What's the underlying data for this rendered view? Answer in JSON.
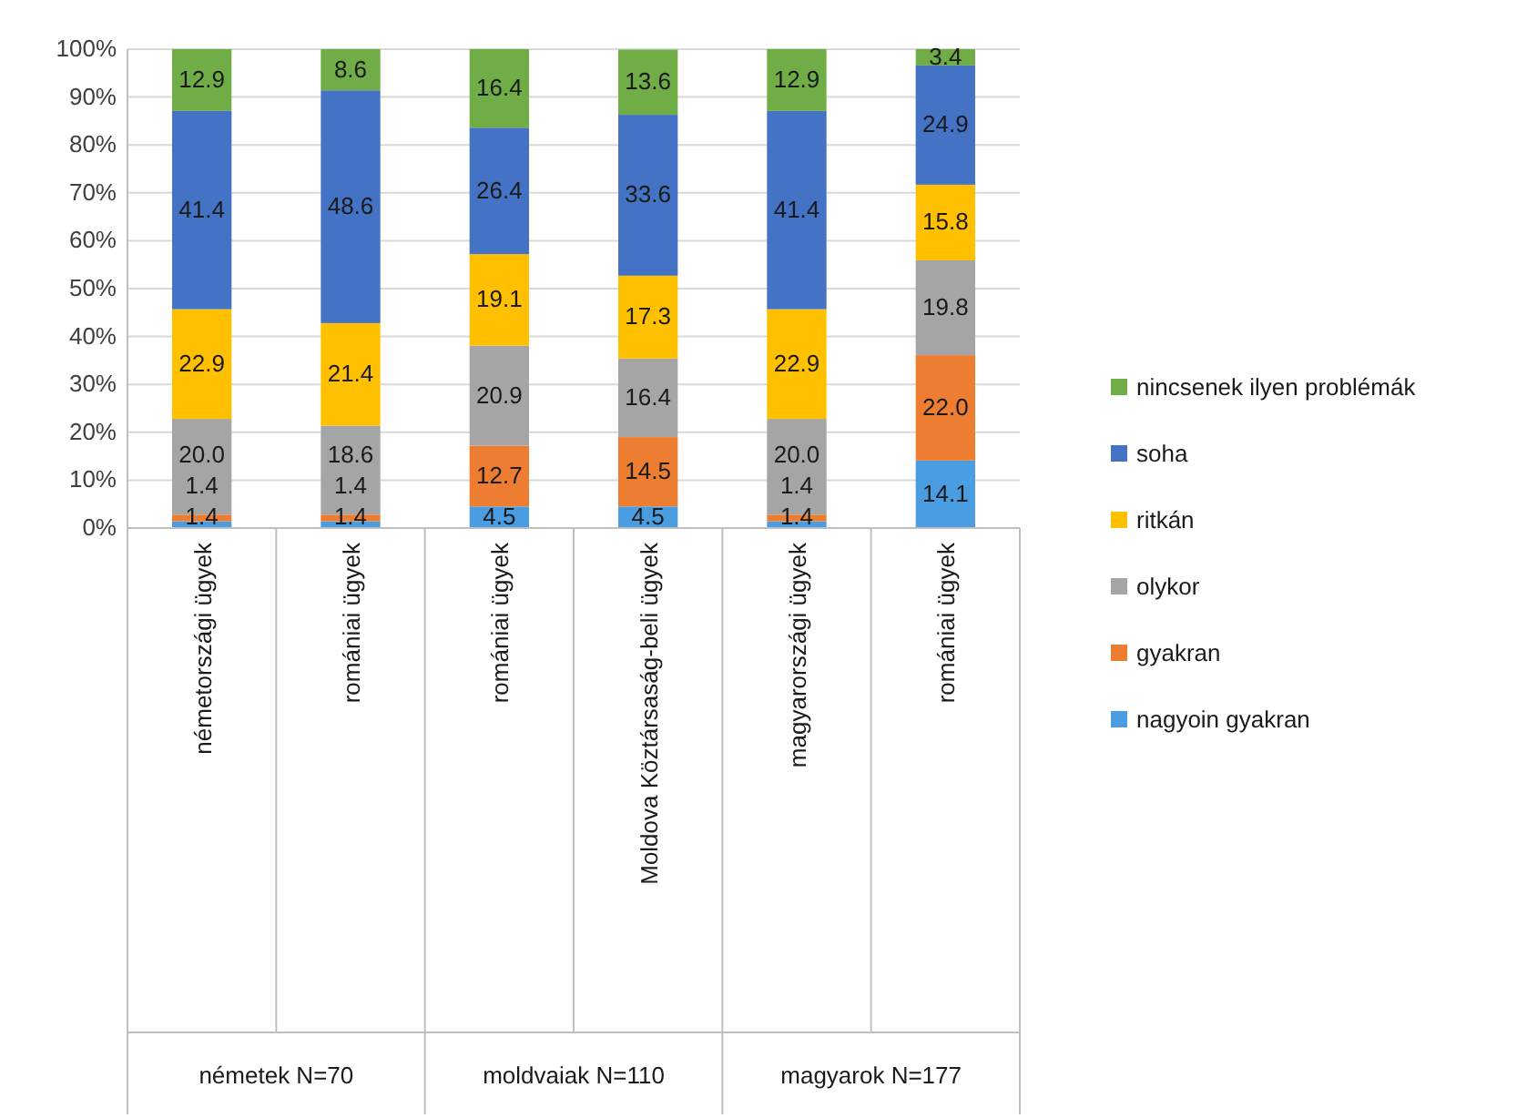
{
  "chart_data": {
    "type": "bar",
    "stacked": true,
    "legend": "right",
    "grid": "y",
    "categories": [
      "németországi ügyek",
      "romániai ügyek",
      "romániai ügyek",
      "Moldova Köztársaság-beli ügyek",
      "magyarországi ügyek",
      "romániai ügyek"
    ],
    "annotations": [
      "németek N=70",
      "moldvaiak N=110",
      "magyarok N=177"
    ],
    "ylim": [
      0,
      100
    ],
    "yticks": [
      {
        "value": 0,
        "label": "0%"
      },
      {
        "value": 10,
        "label": "10%"
      },
      {
        "value": 20,
        "label": "20%"
      },
      {
        "value": 30,
        "label": "30%"
      },
      {
        "value": 40,
        "label": "40%"
      },
      {
        "value": 50,
        "label": "50%"
      },
      {
        "value": 60,
        "label": "60%"
      },
      {
        "value": 70,
        "label": "70%"
      },
      {
        "value": 80,
        "label": "80%"
      },
      {
        "value": 90,
        "label": "90%"
      },
      {
        "value": 100,
        "label": "100%"
      }
    ],
    "series": [
      {
        "name": "nagyoin gyakran",
        "color": "#4a9de0",
        "values": [
          1.4,
          1.4,
          4.5,
          4.5,
          1.4,
          14.1
        ],
        "value_labels": [
          "1.4",
          "1.4",
          "4.5",
          "4.5",
          "1.4",
          "14.1"
        ]
      },
      {
        "name": "gyakran",
        "color": "#ed7d31",
        "values": [
          1.4,
          1.4,
          12.7,
          14.5,
          1.4,
          22.0
        ],
        "value_labels": [
          "1.4",
          "1.4",
          "12.7",
          "14.5",
          "1.4",
          "22.0"
        ]
      },
      {
        "name": "olykor",
        "color": "#a5a5a5",
        "values": [
          20.0,
          18.6,
          20.9,
          16.4,
          20.0,
          19.8
        ],
        "value_labels": [
          "20.0",
          "18.6",
          "20.9",
          "16.4",
          "20.0",
          "19.8"
        ]
      },
      {
        "name": "ritkán",
        "color": "#ffc000",
        "values": [
          22.9,
          21.4,
          19.1,
          17.3,
          22.9,
          15.8
        ],
        "value_labels": [
          "22.9",
          "21.4",
          "19.1",
          "17.3",
          "22.9",
          "15.8"
        ]
      },
      {
        "name": "soha",
        "color": "#4472c4",
        "values": [
          41.4,
          48.6,
          26.4,
          33.6,
          41.4,
          24.9
        ],
        "value_labels": [
          "41.4",
          "48.6",
          "26.4",
          "33.6",
          "41.4",
          "24.9"
        ]
      },
      {
        "name": "nincsenek ilyen problémák",
        "color": "#70ad47",
        "values": [
          12.9,
          8.6,
          16.4,
          13.6,
          12.9,
          3.4
        ],
        "value_labels": [
          "12.9",
          "8.6",
          "16.4",
          "13.6",
          "12.9",
          "3.4"
        ]
      }
    ]
  }
}
